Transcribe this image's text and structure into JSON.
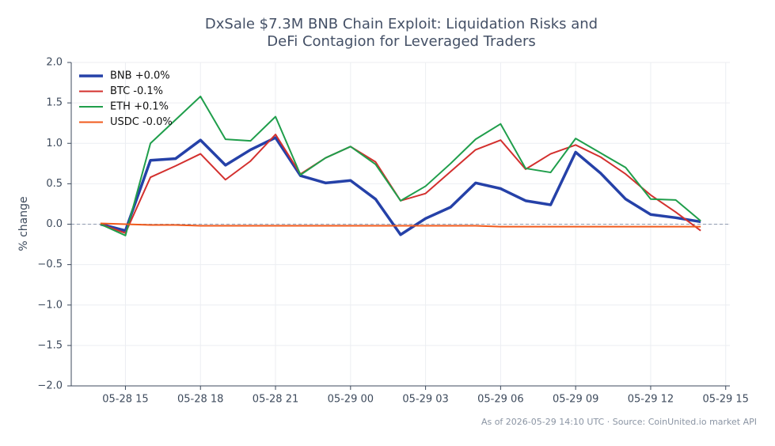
{
  "chart_data": {
    "type": "line",
    "title": "DxSale $7.3M BNB Chain Exploit: Liquidation Risks and DeFi Contagion for Leveraged Traders",
    "ylabel": "% change",
    "footnote": "As of 2026-05-29 14:10 UTC · Source: CoinUnited.io market API",
    "x": [
      "05-28 14",
      "05-28 15",
      "05-28 16",
      "05-28 17",
      "05-28 18",
      "05-28 19",
      "05-28 20",
      "05-28 21",
      "05-28 22",
      "05-28 23",
      "05-29 00",
      "05-29 01",
      "05-29 02",
      "05-29 03",
      "05-29 04",
      "05-29 05",
      "05-29 06",
      "05-29 07",
      "05-29 08",
      "05-29 09",
      "05-29 10",
      "05-29 11",
      "05-29 12",
      "05-29 13",
      "05-29 14"
    ],
    "xlim": [
      "05-28 12:50",
      "05-29 15:10"
    ],
    "xticks": [
      "05-28 15",
      "05-28 18",
      "05-28 21",
      "05-29 00",
      "05-29 03",
      "05-29 06",
      "05-29 09",
      "05-29 12",
      "05-29 15"
    ],
    "ylim": [
      -2,
      2
    ],
    "yticks": [
      {
        "value": -2,
        "label": "−2.0"
      },
      {
        "value": -1.5,
        "label": "−1.5"
      },
      {
        "value": -1,
        "label": "−1.0"
      },
      {
        "value": -0.5,
        "label": "−0.5"
      },
      {
        "value": 0,
        "label": "0.0"
      },
      0.5,
      {
        "value": 1,
        "label": "1.0"
      },
      1.5,
      {
        "value": 2,
        "label": "2.0"
      }
    ],
    "grid": true,
    "zero_line": true,
    "legend": "upper left",
    "series": [
      {
        "name": "BNB +0.0%",
        "color": "#2541a8",
        "values": [
          0.0,
          -0.08,
          0.79,
          0.81,
          1.04,
          0.73,
          0.92,
          1.07,
          0.6,
          0.51,
          0.54,
          0.31,
          -0.13,
          0.07,
          0.21,
          0.51,
          0.44,
          0.29,
          0.24,
          0.89,
          0.63,
          0.31,
          0.12,
          0.08,
          0.03
        ]
      },
      {
        "name": "BTC -0.1%",
        "color": "#d3302e",
        "values": [
          0.0,
          -0.11,
          0.58,
          0.72,
          0.87,
          0.55,
          0.78,
          1.11,
          0.62,
          0.82,
          0.96,
          0.77,
          0.29,
          0.38,
          0.65,
          0.92,
          1.04,
          0.68,
          0.87,
          0.98,
          0.83,
          0.62,
          0.36,
          0.15,
          -0.08
        ]
      },
      {
        "name": "ETH +0.1%",
        "color": "#1f9e4b",
        "values": [
          0.0,
          -0.14,
          1.0,
          1.29,
          1.58,
          1.05,
          1.03,
          1.33,
          0.61,
          0.82,
          0.96,
          0.74,
          0.29,
          0.47,
          0.75,
          1.05,
          1.24,
          0.69,
          0.64,
          1.06,
          0.88,
          0.7,
          0.31,
          0.3,
          0.04
        ]
      },
      {
        "name": "USDC -0.0%",
        "color": "#f05a1c",
        "values": [
          0.01,
          0.0,
          -0.01,
          -0.01,
          -0.02,
          -0.02,
          -0.02,
          -0.02,
          -0.02,
          -0.02,
          -0.02,
          -0.02,
          -0.02,
          -0.02,
          -0.02,
          -0.02,
          -0.03,
          -0.03,
          -0.03,
          -0.03,
          -0.03,
          -0.03,
          -0.03,
          -0.03,
          -0.03
        ]
      }
    ]
  }
}
